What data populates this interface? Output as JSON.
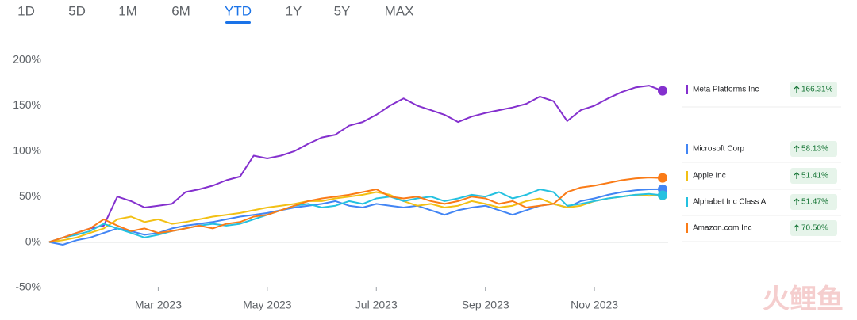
{
  "tabs": {
    "items": [
      "1D",
      "5D",
      "1M",
      "6M",
      "YTD",
      "1Y",
      "5Y",
      "MAX"
    ],
    "selected": 4
  },
  "watermark": "火鲤鱼",
  "chart_data": {
    "type": "line",
    "categories": [
      null,
      null,
      null,
      null,
      null,
      null,
      null,
      null,
      "Mar 2023",
      null,
      null,
      null,
      null,
      null,
      null,
      null,
      "May 2023",
      null,
      null,
      null,
      null,
      null,
      null,
      null,
      "Jul 2023",
      null,
      null,
      null,
      null,
      null,
      null,
      null,
      "Sep 2023",
      null,
      null,
      null,
      null,
      null,
      null,
      null,
      "Nov 2023",
      null,
      null,
      null,
      null,
      null
    ],
    "ylim": [
      -50,
      200
    ],
    "yticks": [
      {
        "value": -50,
        "label": "-50%"
      },
      {
        "value": 0,
        "label": "0%"
      },
      {
        "value": 50,
        "label": "50%"
      },
      {
        "value": 100,
        "label": "100%"
      },
      {
        "value": 150,
        "label": "150%"
      },
      {
        "value": 200,
        "label": "200%"
      }
    ],
    "grid": false,
    "series": [
      {
        "name": "Meta Platforms Inc",
        "color": "#8430ce",
        "change_label": "166.31%",
        "values": [
          0,
          5,
          10,
          15,
          18,
          50,
          45,
          38,
          40,
          42,
          55,
          58,
          62,
          68,
          72,
          95,
          92,
          95,
          100,
          108,
          115,
          118,
          128,
          132,
          140,
          150,
          158,
          150,
          145,
          140,
          132,
          138,
          142,
          145,
          148,
          152,
          160,
          155,
          133,
          145,
          150,
          158,
          165,
          170,
          172,
          166.31
        ]
      },
      {
        "name": "Microsoft Corp",
        "color": "#4285f4",
        "change_label": "58.13%",
        "values": [
          0,
          -3,
          2,
          5,
          10,
          15,
          12,
          8,
          10,
          15,
          18,
          20,
          22,
          25,
          28,
          30,
          32,
          35,
          38,
          40,
          42,
          45,
          40,
          38,
          42,
          40,
          38,
          40,
          35,
          30,
          35,
          38,
          40,
          35,
          30,
          35,
          40,
          42,
          38,
          45,
          48,
          52,
          55,
          57,
          58,
          58.13
        ]
      },
      {
        "name": "Apple Inc",
        "color": "#f2c014",
        "change_label": "51.41%",
        "values": [
          0,
          2,
          5,
          10,
          15,
          25,
          28,
          22,
          25,
          20,
          22,
          25,
          28,
          30,
          32,
          35,
          38,
          40,
          42,
          45,
          45,
          48,
          50,
          52,
          55,
          52,
          45,
          40,
          42,
          38,
          40,
          45,
          42,
          38,
          40,
          45,
          48,
          42,
          38,
          40,
          45,
          48,
          50,
          52,
          51,
          51.41
        ]
      },
      {
        "name": "Alphabet Inc Class A",
        "color": "#24c1e0",
        "change_label": "51.47%",
        "values": [
          0,
          5,
          8,
          12,
          20,
          15,
          10,
          5,
          8,
          12,
          15,
          18,
          20,
          18,
          20,
          25,
          30,
          35,
          40,
          42,
          38,
          40,
          45,
          42,
          48,
          50,
          45,
          48,
          50,
          45,
          48,
          52,
          50,
          55,
          48,
          52,
          58,
          55,
          40,
          42,
          45,
          48,
          50,
          52,
          53,
          51.47
        ]
      },
      {
        "name": "Amazon.com Inc",
        "color": "#fa7b17",
        "change_label": "70.50%",
        "values": [
          0,
          5,
          10,
          15,
          25,
          18,
          12,
          15,
          10,
          12,
          15,
          18,
          15,
          20,
          22,
          28,
          30,
          35,
          40,
          45,
          48,
          50,
          52,
          55,
          58,
          50,
          48,
          50,
          45,
          42,
          45,
          50,
          48,
          42,
          45,
          38,
          40,
          42,
          55,
          60,
          62,
          65,
          68,
          70,
          71,
          70.5
        ]
      }
    ]
  }
}
